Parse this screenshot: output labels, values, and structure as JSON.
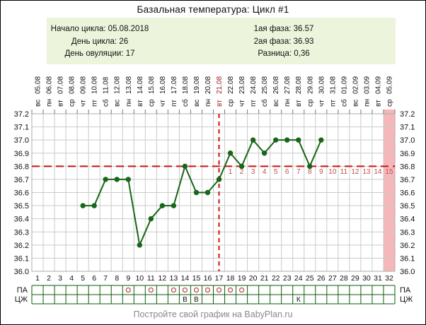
{
  "title": "Базальная температура: Цикл #1",
  "info": {
    "left": [
      "Начало цикла: 05.08.2018",
      "День цикла: 26",
      "День овуляции: 17"
    ],
    "right": [
      "1ая фаза: 36.57",
      "2ая фаза: 36.93",
      "Разница: 0,36"
    ]
  },
  "footer": "Постройте свой график на BabyPlan.ru",
  "chart_data": {
    "type": "line",
    "title": "Базальная температура: Цикл #1",
    "days": 32,
    "dates": [
      "05.08",
      "06.08",
      "07.08",
      "08.08",
      "09.08",
      "10.08",
      "11.08",
      "12.08",
      "13.08",
      "14.08",
      "15.08",
      "16.08",
      "17.08",
      "18.08",
      "19.08",
      "20.08",
      "21.08",
      "22.08",
      "23.08",
      "24.08",
      "25.08",
      "26.08",
      "27.08",
      "28.08",
      "29.08",
      "30.08",
      "31.08",
      "01.09",
      "02.09",
      "03.09",
      "04.09",
      "05.09"
    ],
    "weekdays": [
      "вс",
      "пн",
      "вт",
      "ср",
      "чт",
      "пт",
      "сб",
      "вс",
      "пн",
      "вт",
      "ср",
      "чт",
      "пт",
      "сб",
      "вс",
      "пн",
      "вт",
      "ср",
      "чт",
      "пт",
      "сб",
      "вс",
      "пн",
      "вт",
      "ср",
      "чт",
      "пт",
      "сб",
      "вс",
      "пн",
      "вт",
      "ср"
    ],
    "temps": [
      null,
      null,
      null,
      null,
      36.5,
      36.5,
      36.7,
      36.7,
      36.7,
      36.2,
      36.4,
      36.5,
      36.5,
      36.8,
      36.6,
      36.6,
      36.7,
      36.9,
      36.8,
      37.0,
      36.9,
      37.0,
      37.0,
      37.0,
      36.8,
      37.0,
      null,
      null,
      null,
      null,
      null,
      null
    ],
    "ylim": [
      36.0,
      37.2
    ],
    "yticks": [
      37.2,
      37.1,
      37.0,
      36.9,
      36.8,
      36.7,
      36.6,
      36.5,
      36.4,
      36.3,
      36.2,
      36.1,
      36.0
    ],
    "coverline_temp": 36.8,
    "ovulation_day": 17,
    "dpo_labels": [
      "1",
      "2",
      "3",
      "4",
      "5",
      "6",
      "7",
      "8",
      "9",
      "10",
      "11",
      "12",
      "13",
      "14",
      "15"
    ],
    "highlighted_day": 32,
    "grid": true,
    "bottom_rows": {
      "pa_label": "ПА",
      "cj_label": "ЦЖ",
      "pa_marked_days": [
        9,
        11,
        13,
        14,
        15,
        16,
        17,
        18,
        19
      ],
      "cj_entries": [
        {
          "day": 14,
          "letter": "В"
        },
        {
          "day": 15,
          "letter": "В"
        },
        {
          "day": 24,
          "letter": "К"
        }
      ]
    },
    "colors": {
      "line": "#186618",
      "marker": "#186618",
      "reference": "#cc1111",
      "highlight_column": "#f5b7ba",
      "dpo_text": "#c05050",
      "ovulation_label": "#a02020",
      "grid": "#c8ccc8",
      "plot_border": "#a9ada9",
      "table_border": "#0b5b0b",
      "pa_mark": "#c05050",
      "info_bg": "#ecf5dc",
      "footer_text": "#8a8a8a",
      "text": "#111111"
    }
  }
}
